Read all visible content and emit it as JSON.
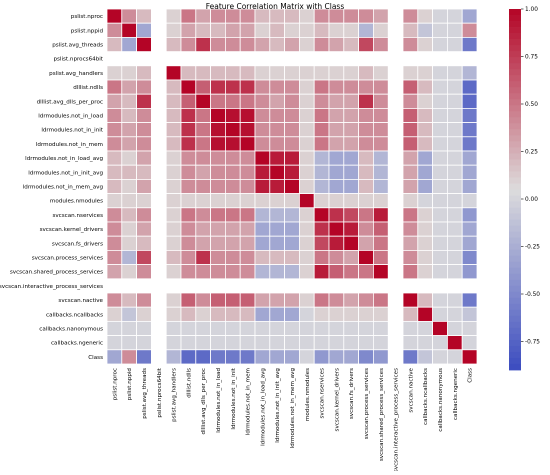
{
  "chart_data": {
    "type": "heatmap",
    "title": "Feature Correlation Matrix with Class",
    "xlabel": "",
    "ylabel": "",
    "colormap": "coolwarm",
    "colors": {
      "low": "#3b4cc0",
      "mid": "#dddcdc",
      "high": "#b40426"
    },
    "vmin": -0.9,
    "vmax": 1.0,
    "grid": true,
    "legend": "colorbar-right",
    "colorbar_ticks": [
      "1.00",
      "0.75",
      "0.50",
      "0.25",
      "0.00",
      "-0.25",
      "-0.50",
      "-0.75"
    ],
    "colorbar_values": [
      1.0,
      0.75,
      0.5,
      0.25,
      0.0,
      -0.25,
      -0.5,
      -0.75
    ],
    "labels": [
      "pslist.nproc",
      "pslist.nppid",
      "pslist.avg_threads",
      "pslist.nprocs64bit",
      "pslist.avg_handlers",
      "dlllist.ndlls",
      "dlllist.avg_dlls_per_proc",
      "ldrmodules.not_in_load",
      "ldrmodules.not_in_init",
      "ldrmodules.not_in_mem",
      "ldrmodules.not_in_load_avg",
      "ldrmodules.not_in_init_avg",
      "ldrmodules.not_in_mem_avg",
      "modules.nmodules",
      "svcscan.nservices",
      "svcscan.kernel_drivers",
      "svcscan.fs_drivers",
      "svcscan.process_services",
      "svcscan.shared_process_services",
      "svcscan.interactive_process_services",
      "svcscan.nactive",
      "callbacks.ncallbacks",
      "callbacks.nanonymous",
      "callbacks.ngeneric",
      "Class"
    ],
    "matrix": [
      [
        1.0,
        0.4,
        0.2,
        null,
        0.1,
        0.5,
        0.3,
        0.4,
        0.4,
        0.4,
        0.2,
        0.2,
        0.2,
        0.1,
        0.4,
        0.4,
        0.4,
        0.4,
        0.3,
        null,
        0.4,
        0.1,
        0.0,
        0.0,
        -0.3
      ],
      [
        0.4,
        1.0,
        -0.3,
        null,
        0.1,
        0.3,
        0.2,
        0.2,
        0.3,
        0.3,
        0.1,
        0.2,
        0.1,
        0.1,
        0.2,
        0.1,
        0.1,
        -0.2,
        0.1,
        null,
        0.2,
        -0.1,
        0.0,
        0.0,
        0.4
      ],
      [
        0.2,
        -0.3,
        1.0,
        null,
        0.2,
        0.4,
        0.8,
        0.4,
        0.4,
        0.4,
        0.3,
        0.2,
        0.3,
        0.1,
        0.4,
        0.3,
        0.2,
        0.7,
        0.4,
        null,
        0.4,
        0.1,
        0.0,
        0.0,
        -0.6
      ],
      [
        null,
        null,
        null,
        null,
        null,
        null,
        null,
        null,
        null,
        null,
        null,
        null,
        null,
        null,
        null,
        null,
        null,
        null,
        null,
        null,
        null,
        null,
        null,
        null,
        null
      ],
      [
        0.1,
        0.1,
        0.2,
        null,
        1.0,
        0.2,
        0.2,
        0.2,
        0.2,
        0.2,
        0.1,
        0.1,
        0.1,
        0.1,
        0.1,
        0.1,
        0.1,
        0.2,
        0.1,
        null,
        0.1,
        0.1,
        0.0,
        0.0,
        -0.2
      ],
      [
        0.5,
        0.3,
        0.4,
        null,
        0.2,
        1.0,
        0.6,
        0.8,
        0.8,
        0.8,
        0.4,
        0.4,
        0.4,
        0.1,
        0.5,
        0.4,
        0.4,
        0.4,
        0.4,
        null,
        0.6,
        0.2,
        0.0,
        0.0,
        -0.7
      ],
      [
        0.3,
        0.2,
        0.8,
        null,
        0.2,
        0.6,
        1.0,
        0.5,
        0.5,
        0.5,
        0.4,
        0.3,
        0.4,
        0.1,
        0.4,
        0.3,
        0.3,
        0.8,
        0.4,
        null,
        0.4,
        0.1,
        0.0,
        0.0,
        -0.7
      ],
      [
        0.4,
        0.2,
        0.4,
        null,
        0.2,
        0.8,
        0.5,
        1.0,
        0.95,
        0.95,
        0.4,
        0.4,
        0.4,
        0.1,
        0.5,
        0.3,
        0.3,
        0.4,
        0.4,
        null,
        0.6,
        0.2,
        0.0,
        0.0,
        -0.6
      ],
      [
        0.4,
        0.3,
        0.4,
        null,
        0.2,
        0.8,
        0.5,
        0.95,
        1.0,
        0.95,
        0.4,
        0.4,
        0.4,
        0.1,
        0.5,
        0.3,
        0.3,
        0.4,
        0.4,
        null,
        0.6,
        0.2,
        0.0,
        0.0,
        -0.6
      ],
      [
        0.4,
        0.3,
        0.4,
        null,
        0.2,
        0.8,
        0.5,
        0.95,
        0.95,
        1.0,
        0.4,
        0.4,
        0.4,
        0.1,
        0.5,
        0.3,
        0.3,
        0.4,
        0.4,
        null,
        0.6,
        0.2,
        0.0,
        0.0,
        -0.6
      ],
      [
        0.2,
        0.1,
        0.3,
        null,
        0.1,
        0.4,
        0.4,
        0.4,
        0.4,
        0.4,
        1.0,
        0.9,
        0.9,
        0.1,
        -0.2,
        -0.3,
        -0.3,
        0.2,
        -0.2,
        null,
        0.3,
        -0.3,
        0.0,
        0.0,
        -0.3
      ],
      [
        0.2,
        0.2,
        0.2,
        null,
        0.1,
        0.4,
        0.3,
        0.4,
        0.4,
        0.4,
        0.9,
        1.0,
        0.9,
        0.1,
        -0.2,
        -0.3,
        -0.3,
        0.2,
        -0.2,
        null,
        0.3,
        -0.3,
        0.0,
        0.0,
        -0.3
      ],
      [
        0.2,
        0.1,
        0.3,
        null,
        0.1,
        0.4,
        0.4,
        0.4,
        0.4,
        0.4,
        0.9,
        0.9,
        1.0,
        0.1,
        -0.2,
        -0.3,
        -0.3,
        0.2,
        -0.2,
        null,
        0.3,
        -0.3,
        0.0,
        0.0,
        -0.3
      ],
      [
        0.1,
        0.1,
        0.1,
        null,
        0.1,
        0.1,
        0.1,
        0.1,
        0.1,
        0.1,
        0.1,
        0.1,
        0.1,
        1.0,
        0.1,
        0.1,
        0.1,
        0.1,
        0.1,
        null,
        0.1,
        0.0,
        0.0,
        0.0,
        0.0
      ],
      [
        0.4,
        0.2,
        0.4,
        null,
        0.1,
        0.5,
        0.4,
        0.5,
        0.5,
        0.5,
        -0.2,
        -0.2,
        -0.2,
        0.1,
        1.0,
        0.8,
        0.7,
        0.5,
        0.9,
        null,
        0.5,
        0.1,
        0.0,
        0.0,
        -0.4
      ],
      [
        0.4,
        0.1,
        0.3,
        null,
        0.1,
        0.4,
        0.3,
        0.3,
        0.3,
        0.3,
        -0.3,
        -0.3,
        -0.3,
        0.1,
        0.8,
        1.0,
        0.9,
        0.4,
        0.6,
        null,
        0.4,
        0.1,
        0.0,
        0.0,
        -0.3
      ],
      [
        0.4,
        0.1,
        0.2,
        null,
        0.1,
        0.4,
        0.3,
        0.3,
        0.3,
        0.3,
        -0.3,
        -0.3,
        -0.3,
        0.1,
        0.7,
        0.9,
        1.0,
        0.3,
        0.5,
        null,
        0.3,
        0.1,
        0.0,
        0.0,
        -0.3
      ],
      [
        0.4,
        -0.2,
        0.7,
        null,
        0.2,
        0.4,
        0.8,
        0.4,
        0.4,
        0.4,
        0.2,
        0.2,
        0.2,
        0.1,
        0.5,
        0.4,
        0.3,
        1.0,
        0.5,
        null,
        0.4,
        0.1,
        0.0,
        0.0,
        -0.5
      ],
      [
        0.3,
        0.1,
        0.4,
        null,
        0.1,
        0.4,
        0.4,
        0.4,
        0.4,
        0.4,
        -0.2,
        -0.2,
        -0.2,
        0.1,
        0.9,
        0.6,
        0.5,
        0.5,
        1.0,
        null,
        0.5,
        0.1,
        0.0,
        0.0,
        -0.4
      ],
      [
        null,
        null,
        null,
        null,
        null,
        null,
        null,
        null,
        null,
        null,
        null,
        null,
        null,
        null,
        null,
        null,
        null,
        null,
        null,
        null,
        null,
        null,
        null,
        null,
        null
      ],
      [
        0.4,
        0.2,
        0.4,
        null,
        0.1,
        0.6,
        0.4,
        0.6,
        0.6,
        0.6,
        0.3,
        0.3,
        0.3,
        0.1,
        0.5,
        0.4,
        0.3,
        0.4,
        0.5,
        null,
        1.0,
        0.2,
        0.0,
        0.0,
        -0.6
      ],
      [
        0.1,
        -0.1,
        0.1,
        null,
        0.1,
        0.2,
        0.1,
        0.2,
        0.2,
        0.2,
        -0.3,
        -0.3,
        -0.3,
        0.0,
        0.1,
        0.1,
        0.1,
        0.1,
        0.1,
        null,
        0.2,
        1.0,
        0.0,
        0.0,
        -0.1
      ],
      [
        0.0,
        0.0,
        0.0,
        null,
        0.0,
        0.0,
        0.0,
        0.0,
        0.0,
        0.0,
        0.0,
        0.0,
        0.0,
        0.0,
        0.0,
        0.0,
        0.0,
        0.0,
        0.0,
        null,
        0.0,
        0.0,
        1.0,
        0.0,
        0.0
      ],
      [
        0.0,
        0.0,
        0.0,
        null,
        0.0,
        0.0,
        0.0,
        0.0,
        0.0,
        0.0,
        0.0,
        0.0,
        0.0,
        0.0,
        0.0,
        0.0,
        0.0,
        0.0,
        0.0,
        null,
        0.0,
        0.0,
        0.0,
        1.0,
        0.0
      ],
      [
        -0.3,
        0.4,
        -0.6,
        null,
        -0.2,
        -0.7,
        -0.7,
        -0.6,
        -0.6,
        -0.6,
        -0.3,
        -0.3,
        -0.3,
        0.0,
        -0.4,
        -0.3,
        -0.3,
        -0.5,
        -0.4,
        null,
        -0.6,
        -0.1,
        0.0,
        0.0,
        1.0
      ]
    ]
  }
}
